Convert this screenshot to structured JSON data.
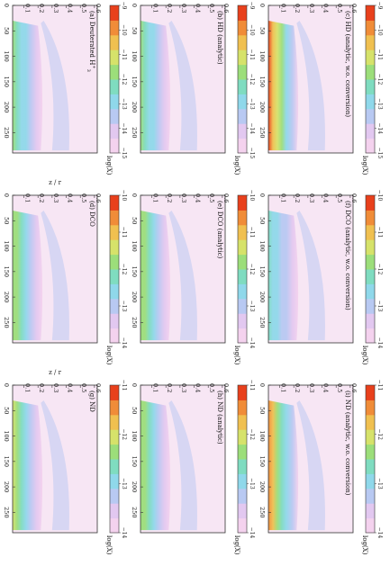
{
  "figure": {
    "colorbar_label": "log(X",
    "colorbar_label_tail": ")",
    "z_axis_label": "z / r",
    "r_ticks": [
      "0",
      "50",
      "100",
      "150",
      "200",
      "250"
    ],
    "z_ticks": [
      "0.1",
      "0.2",
      "0.3",
      "0.4",
      "0.5",
      "0.6"
    ]
  },
  "chart_data": [
    {
      "type": "heatmap",
      "panel": "a",
      "label": "(a) Deuterated  H",
      "label_sup": "+",
      "label_sub": "3",
      "cbar_ticks": [
        "−15",
        "−14",
        "−13",
        "−12",
        "−11",
        "−10",
        "−9"
      ],
      "colormap": [
        "#f4d2ee",
        "#e2c8f0",
        "#b8c9f2",
        "#8fd8ea",
        "#7fdcc0",
        "#9cde7a",
        "#d6e26a",
        "#f0c050",
        "#f08c38",
        "#e8401c"
      ],
      "peak": 0.55
    },
    {
      "type": "heatmap",
      "panel": "b",
      "label": "(b) H",
      "label_mid": "D",
      "label_tail": "  (analytic)",
      "cbar_ticks": [
        "−15",
        "−14",
        "−13",
        "−12",
        "−11",
        "−10",
        "−9"
      ],
      "colormap": [
        "#f4d2ee",
        "#e2c8f0",
        "#b8c9f2",
        "#8fd8ea",
        "#7fdcc0",
        "#9cde7a",
        "#d6e26a",
        "#f0c050",
        "#f08c38",
        "#e8401c"
      ],
      "peak": 0.55
    },
    {
      "type": "heatmap",
      "panel": "c",
      "label": "(c) H",
      "label_mid": "D",
      "label_tail": "  (analytic, w.o. conversion)",
      "cbar_ticks": [
        "−15",
        "−14",
        "−13",
        "−12",
        "−11",
        "−10",
        "−9"
      ],
      "colormap": [
        "#f4d2ee",
        "#e2c8f0",
        "#b8c9f2",
        "#8fd8ea",
        "#7fdcc0",
        "#9cde7a",
        "#d6e26a",
        "#f0c050",
        "#f08c38",
        "#e8401c"
      ],
      "peak": 0.95
    },
    {
      "type": "heatmap",
      "panel": "d",
      "label": "(d) DCO",
      "cbar_ticks": [
        "−14",
        "−13",
        "−12",
        "−11",
        "−10"
      ],
      "colormap": [
        "#f4d2ee",
        "#e2c8f0",
        "#b8c9f2",
        "#8fd8ea",
        "#7fdcc0",
        "#9cde7a",
        "#d6e26a",
        "#f0c050",
        "#f08c38",
        "#e8401c"
      ],
      "peak": 0.6
    },
    {
      "type": "heatmap",
      "panel": "e",
      "label": "(e) DCO",
      "label_tail": "  (analytic)",
      "cbar_ticks": [
        "−14",
        "−13",
        "−12",
        "−11",
        "−10"
      ],
      "colormap": [
        "#f4d2ee",
        "#e2c8f0",
        "#b8c9f2",
        "#8fd8ea",
        "#7fdcc0",
        "#9cde7a",
        "#d6e26a",
        "#f0c050",
        "#f08c38",
        "#e8401c"
      ],
      "peak": 0.6
    },
    {
      "type": "heatmap",
      "panel": "f",
      "label": "(f) DCO",
      "label_tail": "  (analytic, w.o. conversion)",
      "cbar_ticks": [
        "−14",
        "−13",
        "−12",
        "−11",
        "−10"
      ],
      "colormap": [
        "#f4d2ee",
        "#e2c8f0",
        "#b8c9f2",
        "#8fd8ea",
        "#7fdcc0",
        "#9cde7a",
        "#d6e26a",
        "#f0c050",
        "#f08c38",
        "#e8401c"
      ],
      "peak": 0.45
    },
    {
      "type": "heatmap",
      "panel": "g",
      "label": "(g) N",
      "label_mid": "D",
      "cbar_ticks": [
        "−14",
        "−13",
        "−12",
        "−11"
      ],
      "colormap": [
        "#f4d2ee",
        "#e2c8f0",
        "#b8c9f2",
        "#8fd8ea",
        "#7fdcc0",
        "#9cde7a",
        "#d6e26a",
        "#f0c050",
        "#f08c38",
        "#e8401c"
      ],
      "peak": 0.65
    },
    {
      "type": "heatmap",
      "panel": "h",
      "label": "(h) N",
      "label_mid": "D",
      "label_tail": "  (analytic)",
      "cbar_ticks": [
        "−14",
        "−13",
        "−12",
        "−11"
      ],
      "colormap": [
        "#f4d2ee",
        "#e2c8f0",
        "#b8c9f2",
        "#8fd8ea",
        "#7fdcc0",
        "#9cde7a",
        "#d6e26a",
        "#f0c050",
        "#f08c38",
        "#e8401c"
      ],
      "peak": 0.6
    },
    {
      "type": "heatmap",
      "panel": "i",
      "label": "(i) N",
      "label_mid": "D",
      "label_tail": "  (analytic, w.o. conversion)",
      "cbar_ticks": [
        "−14",
        "−13",
        "−12",
        "−11"
      ],
      "colormap": [
        "#f4d2ee",
        "#e2c8f0",
        "#b8c9f2",
        "#8fd8ea",
        "#7fdcc0",
        "#9cde7a",
        "#d6e26a",
        "#f0c050",
        "#f08c38",
        "#e8401c"
      ],
      "peak": 0.85
    }
  ]
}
